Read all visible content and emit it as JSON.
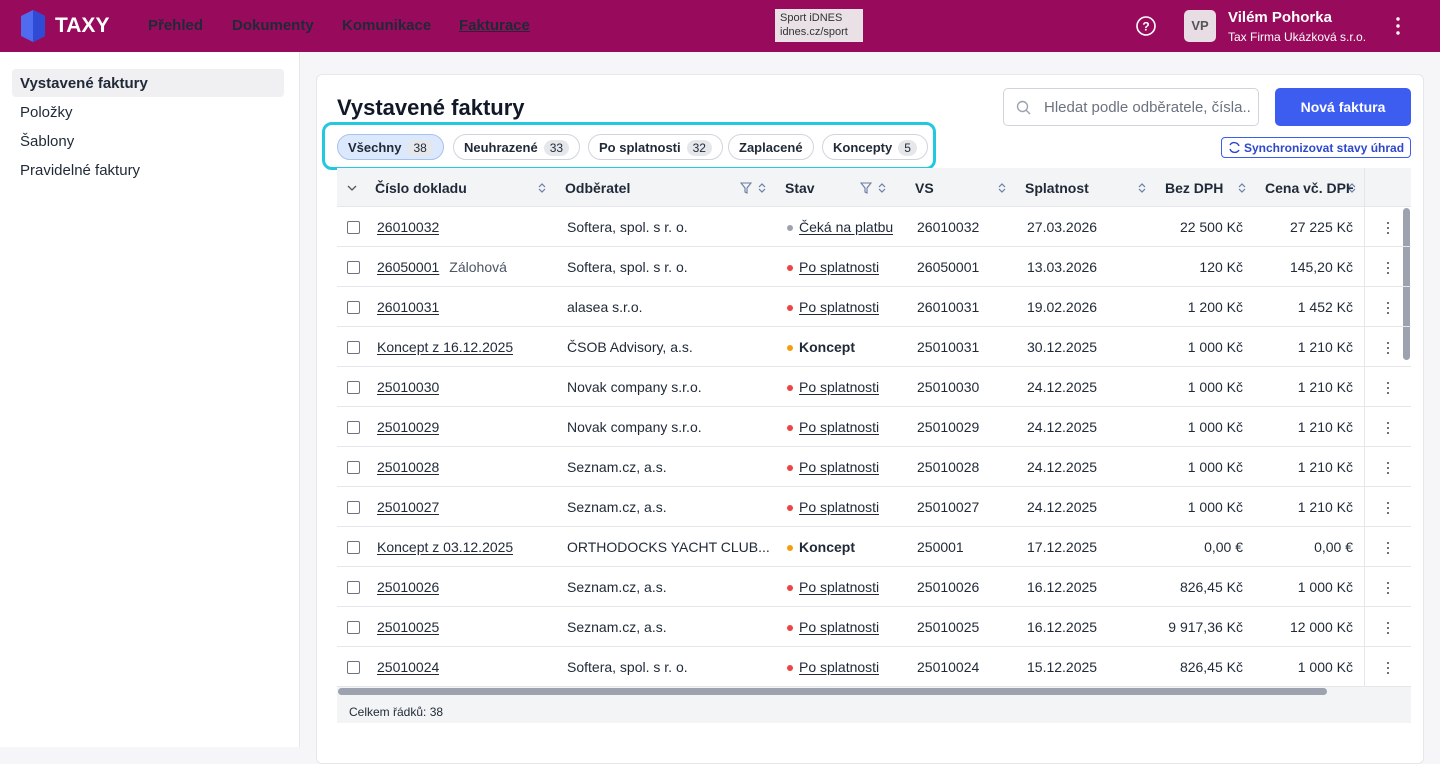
{
  "header": {
    "brand": "TAXY",
    "nav": [
      {
        "label": "Přehled",
        "active": false
      },
      {
        "label": "Dokumenty",
        "active": false
      },
      {
        "label": "Komunikace",
        "active": false
      },
      {
        "label": "Fakturace",
        "active": true
      }
    ],
    "ad": [
      "Sport iDNES",
      "idnes.cz/sport"
    ],
    "avatar": "VP",
    "user_name": "Vilém Pohorka",
    "company": "Tax Firma Ukázková s.r.o."
  },
  "sidebar": {
    "items": [
      {
        "label": "Vystavené faktury",
        "active": true
      },
      {
        "label": "Položky",
        "active": false
      },
      {
        "label": "Šablony",
        "active": false
      },
      {
        "label": "Pravidelné faktury",
        "active": false
      }
    ]
  },
  "main": {
    "title": "Vystavené faktury",
    "search_placeholder": "Hledat podle odběratele, čísla..",
    "new_button": "Nová faktura",
    "sync_button": "Synchronizovat stavy úhrad",
    "filters": [
      {
        "label": "Všechny",
        "count": 38,
        "active": true
      },
      {
        "label": "Neuhrazené",
        "count": 33,
        "active": false
      },
      {
        "label": "Po splatnosti",
        "count": 32,
        "active": false
      },
      {
        "label": "Zaplacené",
        "count": null,
        "active": false
      },
      {
        "label": "Koncepty",
        "count": 5,
        "active": false
      }
    ],
    "table": {
      "columns": [
        "Číslo dokladu",
        "Odběratel",
        "Stav",
        "VS",
        "Splatnost",
        "Bez DPH",
        "Cena vč. DPH"
      ],
      "rows": [
        {
          "number": "26010032",
          "note": null,
          "customer": "Softera, spol. s r. o.",
          "status": "Čeká na platbu",
          "status_color": "#9ca3af",
          "vs": "26010032",
          "due": "27.03.2026",
          "net": "22 500 Kč",
          "gross": "27 225 Kč"
        },
        {
          "number": "26050001",
          "note": "Zálohová",
          "customer": "Softera, spol. s r. o.",
          "status": "Po splatnosti",
          "status_color": "#ef4444",
          "vs": "26050001",
          "due": "13.03.2026",
          "net": "120 Kč",
          "gross": "145,20 Kč"
        },
        {
          "number": "26010031",
          "note": null,
          "customer": "alasea s.r.o.",
          "status": "Po splatnosti",
          "status_color": "#ef4444",
          "vs": "26010031",
          "due": "19.02.2026",
          "net": "1 200 Kč",
          "gross": "1 452 Kč"
        },
        {
          "number": "Koncept z 16.12.2025",
          "note": null,
          "customer": "ČSOB Advisory, a.s.",
          "status": "Koncept",
          "status_color": "#f59e0b",
          "vs": "25010031",
          "due": "30.12.2025",
          "net": "1 000 Kč",
          "gross": "1 210 Kč"
        },
        {
          "number": "25010030",
          "note": null,
          "customer": "Novak company s.r.o.",
          "status": "Po splatnosti",
          "status_color": "#ef4444",
          "vs": "25010030",
          "due": "24.12.2025",
          "net": "1 000 Kč",
          "gross": "1 210 Kč"
        },
        {
          "number": "25010029",
          "note": null,
          "customer": "Novak company s.r.o.",
          "status": "Po splatnosti",
          "status_color": "#ef4444",
          "vs": "25010029",
          "due": "24.12.2025",
          "net": "1 000 Kč",
          "gross": "1 210 Kč"
        },
        {
          "number": "25010028",
          "note": null,
          "customer": "Seznam.cz, a.s.",
          "status": "Po splatnosti",
          "status_color": "#ef4444",
          "vs": "25010028",
          "due": "24.12.2025",
          "net": "1 000 Kč",
          "gross": "1 210 Kč"
        },
        {
          "number": "25010027",
          "note": null,
          "customer": "Seznam.cz, a.s.",
          "status": "Po splatnosti",
          "status_color": "#ef4444",
          "vs": "25010027",
          "due": "24.12.2025",
          "net": "1 000 Kč",
          "gross": "1 210 Kč"
        },
        {
          "number": "Koncept z 03.12.2025",
          "note": null,
          "customer": "ORTHODOCKS YACHT CLUB...",
          "status": "Koncept",
          "status_color": "#f59e0b",
          "vs": "250001",
          "due": "17.12.2025",
          "net": "0,00 €",
          "gross": "0,00 €"
        },
        {
          "number": "25010026",
          "note": null,
          "customer": "Seznam.cz, a.s.",
          "status": "Po splatnosti",
          "status_color": "#ef4444",
          "vs": "25010026",
          "due": "16.12.2025",
          "net": "826,45 Kč",
          "gross": "1 000 Kč"
        },
        {
          "number": "25010025",
          "note": null,
          "customer": "Seznam.cz, a.s.",
          "status": "Po splatnosti",
          "status_color": "#ef4444",
          "vs": "25010025",
          "due": "16.12.2025",
          "net": "9 917,36 Kč",
          "gross": "12 000 Kč"
        },
        {
          "number": "25010024",
          "note": null,
          "customer": "Softera, spol. s r. o.",
          "status": "Po splatnosti",
          "status_color": "#ef4444",
          "vs": "25010024",
          "due": "15.12.2025",
          "net": "826,45 Kč",
          "gross": "1 000 Kč"
        }
      ],
      "footer": "Celkem řádků: 38"
    }
  }
}
